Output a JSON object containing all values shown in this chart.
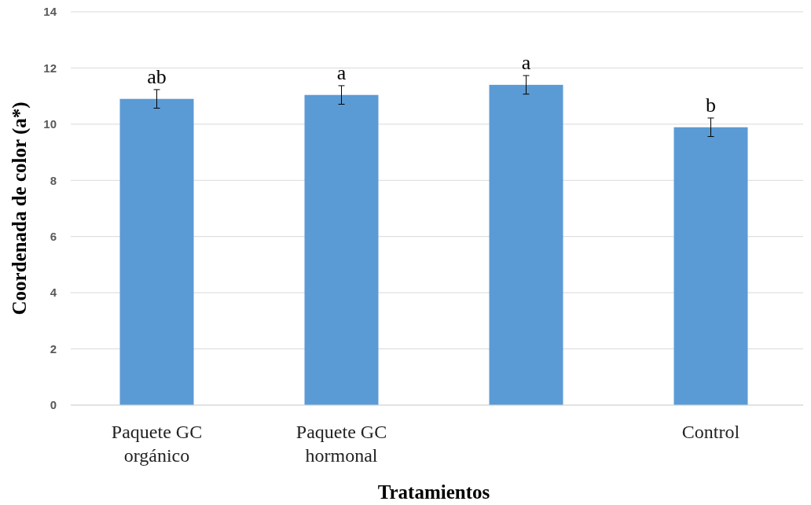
{
  "chart_data": {
    "type": "bar",
    "xlabel": "Tratamientos",
    "ylabel": "Coordenada de color (a*)",
    "categories": [
      "Paquete GC orgánico",
      "Paquete GC hormonal",
      null,
      "Control"
    ],
    "values": [
      10.9,
      11.04,
      11.4,
      9.89
    ],
    "errors": [
      0.33,
      0.33,
      0.33,
      0.33
    ],
    "color": "#5b9bd5",
    "ylim": [
      0,
      14
    ],
    "yticks": [
      0,
      2,
      4,
      6,
      8,
      10,
      12,
      14
    ],
    "grid": "y",
    "annotations": [
      "ab",
      "a",
      "a",
      "b"
    ]
  }
}
